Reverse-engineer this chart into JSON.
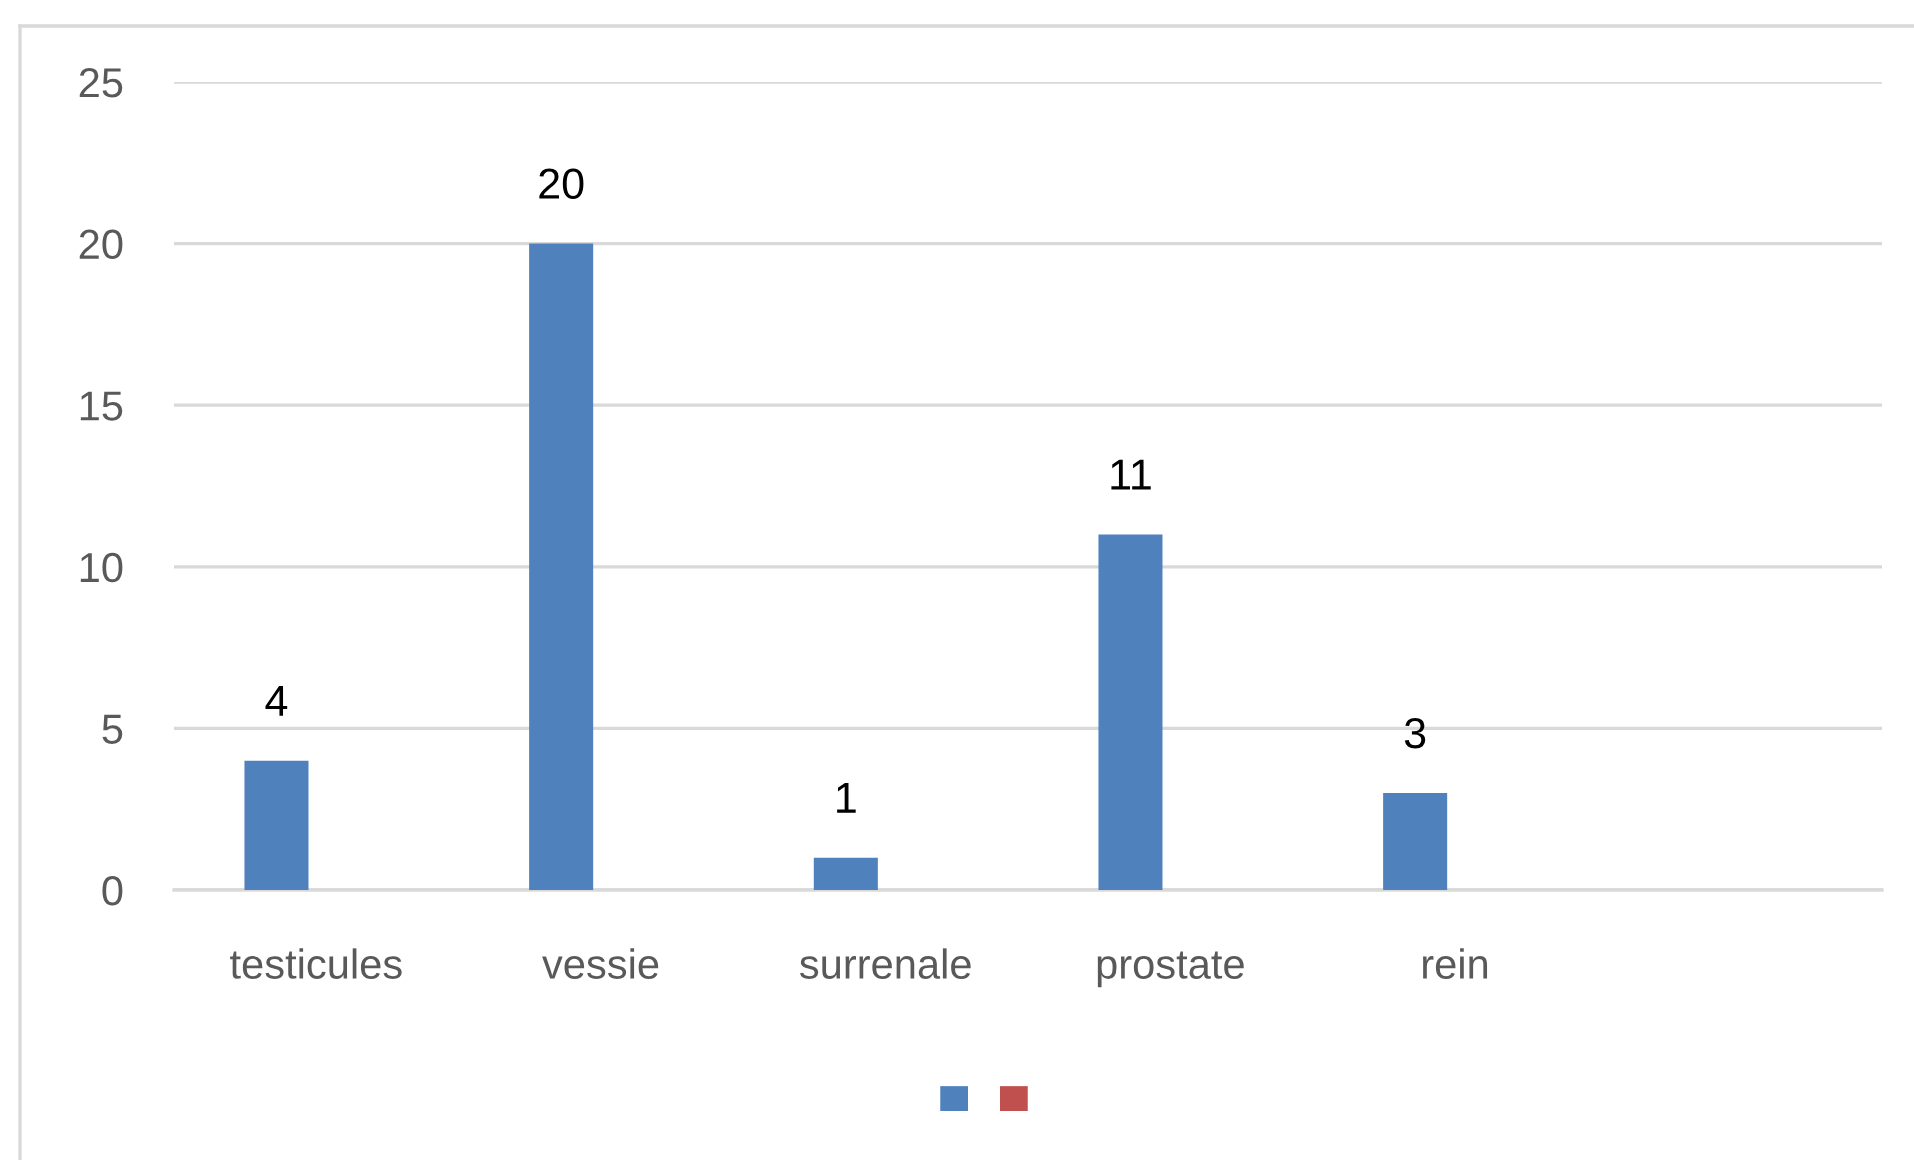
{
  "chart_data": {
    "type": "bar",
    "categories": [
      "testicules",
      "vessie",
      "surrenale",
      "prostate",
      "rein",
      null
    ],
    "series": [
      {
        "color": "#4f81bd",
        "values": [
          4,
          20,
          1,
          11,
          3,
          null
        ]
      },
      {
        "color": "#c0504d",
        "values": [
          null,
          null,
          null,
          null,
          null,
          null
        ]
      }
    ],
    "ylim": [
      0,
      25
    ],
    "yticks": [
      0,
      5,
      10,
      15,
      20,
      25
    ],
    "grid": "y",
    "data_labels": true
  }
}
